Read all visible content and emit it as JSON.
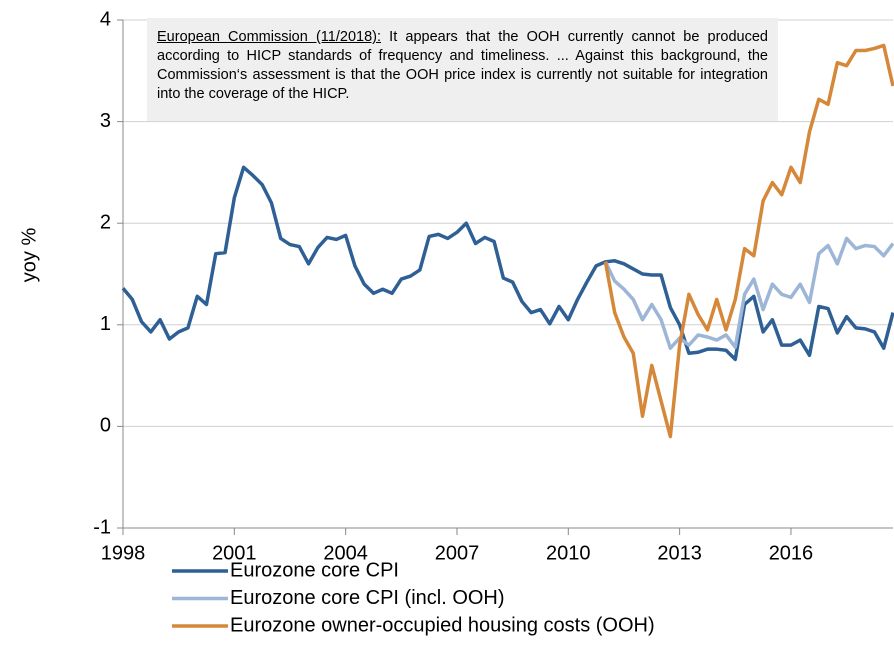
{
  "chart_data": {
    "type": "line",
    "y_label": "yoy %",
    "annotation_title": "European Commission (11/2018):",
    "annotation": "It appears that the OOH currently cannot be produced according to HICP standards of frequency and timeliness. ... Against this background, the Commission‘s assessment is that the OOH price index is currently not suitable for integration into the coverage of the HICP.",
    "x": [
      1998,
      1998.25,
      1998.5,
      1998.75,
      1999,
      1999.25,
      1999.5,
      1999.75,
      2000,
      2000.25,
      2000.5,
      2000.75,
      2001,
      2001.25,
      2001.5,
      2001.75,
      2002,
      2002.25,
      2002.5,
      2002.75,
      2003,
      2003.25,
      2003.5,
      2003.75,
      2004,
      2004.25,
      2004.5,
      2004.75,
      2005,
      2005.25,
      2005.5,
      2005.75,
      2006,
      2006.25,
      2006.5,
      2006.75,
      2007,
      2007.25,
      2007.5,
      2007.75,
      2008,
      2008.25,
      2008.5,
      2008.75,
      2009,
      2009.25,
      2009.5,
      2009.75,
      2010,
      2010.25,
      2010.5,
      2010.75,
      2011,
      2011.25,
      2011.5,
      2011.75,
      2012,
      2012.25,
      2012.5,
      2012.75,
      2013,
      2013.25,
      2013.5,
      2013.75,
      2014,
      2014.25,
      2014.5,
      2014.75,
      2015,
      2015.25,
      2015.5,
      2015.75,
      2016,
      2016.25,
      2016.5,
      2016.75,
      2017,
      2017.25,
      2017.5,
      2017.75,
      2018,
      2018.25,
      2018.5,
      2018.75
    ],
    "series": [
      {
        "name": "Eurozone core CPI",
        "color": "#2e5f95",
        "values": [
          1.36,
          1.25,
          1.03,
          0.93,
          1.05,
          0.86,
          0.93,
          0.97,
          1.28,
          1.2,
          1.7,
          1.71,
          2.25,
          2.55,
          2.47,
          2.38,
          2.2,
          1.85,
          1.79,
          1.77,
          1.6,
          1.76,
          1.86,
          1.84,
          1.88,
          1.58,
          1.4,
          1.31,
          1.35,
          1.31,
          1.45,
          1.48,
          1.54,
          1.87,
          1.89,
          1.85,
          1.91,
          2.0,
          1.8,
          1.86,
          1.82,
          1.46,
          1.42,
          1.23,
          1.12,
          1.15,
          1.01,
          1.18,
          1.05,
          1.25,
          1.42,
          1.58,
          1.62,
          1.63,
          1.6,
          1.55,
          1.5,
          1.49,
          1.49,
          1.17,
          1.0,
          0.72,
          0.73,
          0.76,
          0.76,
          0.75,
          0.66,
          1.2,
          1.28,
          0.93,
          1.05,
          0.8,
          0.8,
          0.85,
          0.7,
          1.18,
          1.16,
          0.92,
          1.08,
          0.97,
          0.96,
          0.93,
          0.77,
          1.12
        ]
      },
      {
        "name": "Eurozone core CPI (incl. OOH)",
        "color": "#9db5d6",
        "values": [
          null,
          null,
          null,
          null,
          null,
          null,
          null,
          null,
          null,
          null,
          null,
          null,
          null,
          null,
          null,
          null,
          null,
          null,
          null,
          null,
          null,
          null,
          null,
          null,
          null,
          null,
          null,
          null,
          null,
          null,
          null,
          null,
          null,
          null,
          null,
          null,
          null,
          null,
          null,
          null,
          null,
          null,
          null,
          null,
          null,
          null,
          null,
          null,
          null,
          null,
          null,
          null,
          1.62,
          1.43,
          1.35,
          1.25,
          1.05,
          1.2,
          1.05,
          0.77,
          0.87,
          0.8,
          0.9,
          0.88,
          0.85,
          0.9,
          0.78,
          1.3,
          1.45,
          1.15,
          1.4,
          1.3,
          1.27,
          1.4,
          1.22,
          1.7,
          1.78,
          1.6,
          1.85,
          1.75,
          1.78,
          1.77,
          1.68,
          1.8
        ]
      },
      {
        "name": "Eurozone owner-occupied housing costs (OOH)",
        "color": "#d5883a",
        "values": [
          null,
          null,
          null,
          null,
          null,
          null,
          null,
          null,
          null,
          null,
          null,
          null,
          null,
          null,
          null,
          null,
          null,
          null,
          null,
          null,
          null,
          null,
          null,
          null,
          null,
          null,
          null,
          null,
          null,
          null,
          null,
          null,
          null,
          null,
          null,
          null,
          null,
          null,
          null,
          null,
          null,
          null,
          null,
          null,
          null,
          null,
          null,
          null,
          null,
          null,
          null,
          null,
          1.62,
          1.12,
          0.88,
          0.72,
          0.1,
          0.6,
          0.25,
          -0.1,
          0.8,
          1.3,
          1.1,
          0.95,
          1.25,
          0.95,
          1.25,
          1.75,
          1.68,
          2.22,
          2.4,
          2.28,
          2.55,
          2.4,
          2.9,
          3.22,
          3.17,
          3.58,
          3.55,
          3.7,
          3.7,
          3.72,
          3.75,
          3.35
        ]
      }
    ],
    "xlim": [
      1998,
      2018.75
    ],
    "xticks": [
      1998,
      2001,
      2004,
      2007,
      2010,
      2013,
      2016
    ],
    "ylim": [
      -1,
      4
    ],
    "yticks": [
      -1,
      0,
      1,
      2,
      3,
      4
    ],
    "grid": true
  }
}
